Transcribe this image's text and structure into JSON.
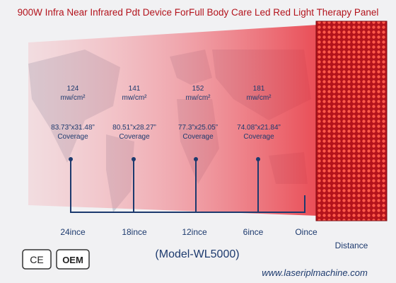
{
  "title": "900W Infra Near Infrared Pdt  Device ForFull Body Care Led Red Light Therapy Panel",
  "measurements": [
    {
      "irradiance": 124,
      "unit": "mw/cm²",
      "coverage": "83.73”x31.48”",
      "coverage_label": "Coverage"
    },
    {
      "irradiance": 141,
      "unit": "mw/cm²",
      "coverage": "80.51”x28.27”",
      "coverage_label": "Coverage"
    },
    {
      "irradiance": 152,
      "unit": "mw/cm²",
      "coverage": "77.3”x25.05”",
      "coverage_label": "Coverage"
    },
    {
      "irradiance": 181,
      "unit": "mw/cm²",
      "coverage": "74.08”x21.84”",
      "coverage_label": "Coverage"
    }
  ],
  "distances": [
    "24ince",
    "18ince",
    "12ince",
    "6ince",
    "Oince"
  ],
  "distance_label": "Distance",
  "model": "(Model-WL5000)",
  "website": "www.laseriplmachine.com",
  "badges": [
    "CE",
    "OEM"
  ]
}
